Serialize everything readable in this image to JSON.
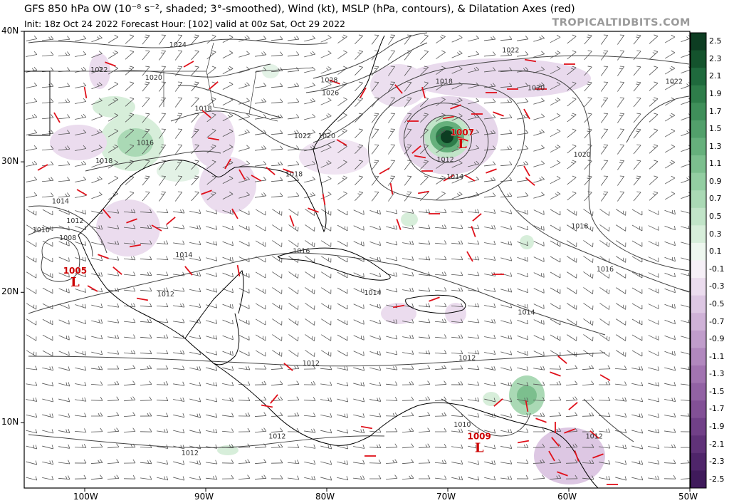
{
  "header": {
    "title": "GFS 850 hPa OW (10⁻⁸ s⁻², shaded; 3°-smoothed), Wind (kt), MSLP (hPa, contours), & Dilatation Axes (red)",
    "subtitle": "Init: 18z Oct 24 2022   Forecast Hour: [102]   valid at 00z Sat, Oct 29 2022",
    "brand": "TROPICALTIDBITS.COM"
  },
  "axes": {
    "lat_labels": [
      "40N",
      "30N",
      "20N",
      "10N"
    ],
    "lat_values": [
      40,
      30,
      20,
      10
    ],
    "lon_labels": [
      "100W",
      "90W",
      "80W",
      "70W",
      "60W",
      "50W"
    ],
    "lon_values": [
      -100,
      -90,
      -80,
      -70,
      -60,
      -50
    ],
    "lat_range": [
      5,
      40
    ],
    "lon_range": [
      -105,
      -50
    ]
  },
  "colorbar": {
    "labels": [
      "2.5",
      "2.3",
      "2.1",
      "1.9",
      "1.7",
      "1.5",
      "1.3",
      "1.1",
      "0.9",
      "0.7",
      "0.5",
      "0.3",
      "0.1",
      "-0.1",
      "-0.3",
      "-0.5",
      "-0.7",
      "-0.9",
      "-1.1",
      "-1.3",
      "-1.5",
      "-1.7",
      "-1.9",
      "-2.1",
      "-2.3",
      "-2.5"
    ],
    "colors": [
      "#0d3d22",
      "#14532d",
      "#1f6a3d",
      "#2e7d4a",
      "#3f8f5a",
      "#52a06b",
      "#66b07c",
      "#7cbf8e",
      "#93cea2",
      "#aad9b5",
      "#c1e4c8",
      "#d7eeda",
      "#eef7ef",
      "#f6f0f7",
      "#ebdcee",
      "#ddc7e3",
      "#cfb2d7",
      "#c09dcb",
      "#b188be",
      "#a274b1",
      "#9262a4",
      "#825096",
      "#714088",
      "#603279",
      "#4f256a",
      "#3f1a5b"
    ]
  },
  "pressure_labels": [
    {
      "text": "1024",
      "lon": -92.3,
      "lat": 38.8
    },
    {
      "text": "1022",
      "lon": -98.8,
      "lat": 36.9
    },
    {
      "text": "1020",
      "lon": -94.3,
      "lat": 36.3
    },
    {
      "text": "1018",
      "lon": -90.2,
      "lat": 33.9
    },
    {
      "text": "1016",
      "lon": -95.0,
      "lat": 31.3
    },
    {
      "text": "1018",
      "lon": -98.4,
      "lat": 29.9
    },
    {
      "text": "1014",
      "lon": -102.0,
      "lat": 26.8
    },
    {
      "text": "1012",
      "lon": -100.8,
      "lat": 25.3
    },
    {
      "text": "1010",
      "lon": -103.6,
      "lat": 24.6
    },
    {
      "text": "1008",
      "lon": -101.4,
      "lat": 24.0
    },
    {
      "text": "1014",
      "lon": -91.8,
      "lat": 22.7
    },
    {
      "text": "1012",
      "lon": -93.3,
      "lat": 19.7
    },
    {
      "text": "1028",
      "lon": -79.8,
      "lat": 36.1
    },
    {
      "text": "1026",
      "lon": -79.7,
      "lat": 35.1
    },
    {
      "text": "1022",
      "lon": -82.0,
      "lat": 31.8
    },
    {
      "text": "1020",
      "lon": -80.0,
      "lat": 31.8
    },
    {
      "text": "1018",
      "lon": -82.7,
      "lat": 28.9
    },
    {
      "text": "1016",
      "lon": -82.1,
      "lat": 23.0
    },
    {
      "text": "1014",
      "lon": -76.2,
      "lat": 19.8
    },
    {
      "text": "1022",
      "lon": -64.8,
      "lat": 38.4
    },
    {
      "text": "1018",
      "lon": -70.3,
      "lat": 36.0
    },
    {
      "text": "1020",
      "lon": -62.7,
      "lat": 35.5
    },
    {
      "text": "1022",
      "lon": -51.3,
      "lat": 36.0
    },
    {
      "text": "1012",
      "lon": -70.2,
      "lat": 30.0
    },
    {
      "text": "1014",
      "lon": -69.4,
      "lat": 28.7
    },
    {
      "text": "1020",
      "lon": -58.9,
      "lat": 30.4
    },
    {
      "text": "1018",
      "lon": -59.1,
      "lat": 24.9
    },
    {
      "text": "1016",
      "lon": -57.0,
      "lat": 21.6
    },
    {
      "text": "1014",
      "lon": -63.5,
      "lat": 18.3
    },
    {
      "text": "1012",
      "lon": -81.3,
      "lat": 14.4
    },
    {
      "text": "1012",
      "lon": -68.4,
      "lat": 14.8
    },
    {
      "text": "1010",
      "lon": -68.8,
      "lat": 9.7
    },
    {
      "text": "1012",
      "lon": -84.1,
      "lat": 8.8
    },
    {
      "text": "1012",
      "lon": -91.3,
      "lat": 7.5
    },
    {
      "text": "1012",
      "lon": -57.9,
      "lat": 8.8
    }
  ],
  "lows": [
    {
      "pressure": "1007",
      "symbol": "L",
      "lon": -68.8,
      "lat": 31.7
    },
    {
      "pressure": "1005",
      "symbol": "L",
      "lon": -100.8,
      "lat": 21.1
    },
    {
      "pressure": "1009",
      "symbol": "L",
      "lon": -67.4,
      "lat": 8.4
    }
  ],
  "colors": {
    "dilatation_axes": "#e0101a",
    "low_label": "#cc0000",
    "contour": "#444444",
    "wind": "#555555",
    "coast": "#000000"
  }
}
